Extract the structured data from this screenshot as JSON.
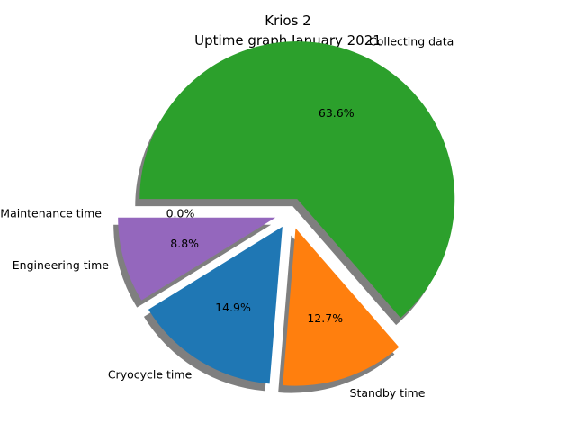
{
  "chart_data": {
    "type": "pie",
    "title": "Krios 2",
    "subtitle": "Uptime graph January 2021",
    "start_angle_deg": 180,
    "direction": "clockwise",
    "shadow": true,
    "slices": [
      {
        "label": "Collecting data",
        "value": 63.6,
        "pct_label": "63.6%",
        "color": "#2ca02c",
        "explode": 0.1
      },
      {
        "label": "Standby time",
        "value": 12.7,
        "pct_label": "12.7%",
        "color": "#ff7f0e",
        "explode": 0.1
      },
      {
        "label": "Cryocycle time",
        "value": 14.9,
        "pct_label": "14.9%",
        "color": "#1f77b4",
        "explode": 0.1
      },
      {
        "label": "Engineering time",
        "value": 8.8,
        "pct_label": "8.8%",
        "color": "#9467bd",
        "explode": 0.1
      },
      {
        "label": "Maintenance time",
        "value": 0.0,
        "pct_label": "0.0%",
        "color": "#d62728",
        "explode": 0.1
      }
    ]
  }
}
